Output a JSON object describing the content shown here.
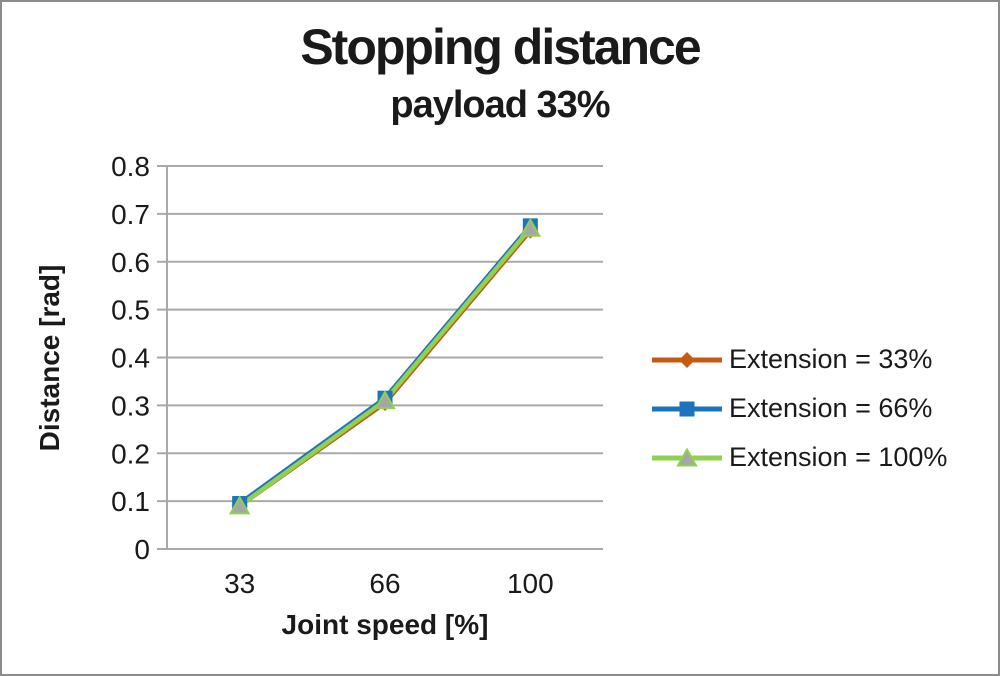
{
  "chart_data": {
    "type": "line",
    "title": "Stopping distance",
    "subtitle": "payload 33%",
    "xlabel": "Joint speed [%]",
    "ylabel": "Distance [rad]",
    "categories": [
      "33",
      "66",
      "100"
    ],
    "x_values": [
      33,
      66,
      100
    ],
    "series": [
      {
        "name": "Extension = 33%",
        "values": [
          0.09,
          0.305,
          0.665
        ],
        "color": "#C55A11",
        "marker": "diamond",
        "marker_fill": "#C55A11"
      },
      {
        "name": "Extension = 66%",
        "values": [
          0.095,
          0.315,
          0.675
        ],
        "color": "#1C75BC",
        "marker": "square",
        "marker_fill": "#1C75BC"
      },
      {
        "name": "Extension = 100%",
        "values": [
          0.09,
          0.31,
          0.67
        ],
        "color": "#92D050",
        "marker": "triangle",
        "marker_fill": "#A6A6A6"
      }
    ],
    "ylim": [
      0,
      0.8
    ],
    "ytick_step": 0.1,
    "yticks": [
      "0.8",
      "0.7",
      "0.6",
      "0.5",
      "0.4",
      "0.3",
      "0.2",
      "0.1",
      "0"
    ],
    "grid": true,
    "legend_position": "right",
    "colors": {
      "grid": "#A9A9A9",
      "axis": "#A9A9A9",
      "text": "#1A1A1A",
      "background": "#FFFFFF",
      "frame_border": "#8C8C8C"
    }
  }
}
